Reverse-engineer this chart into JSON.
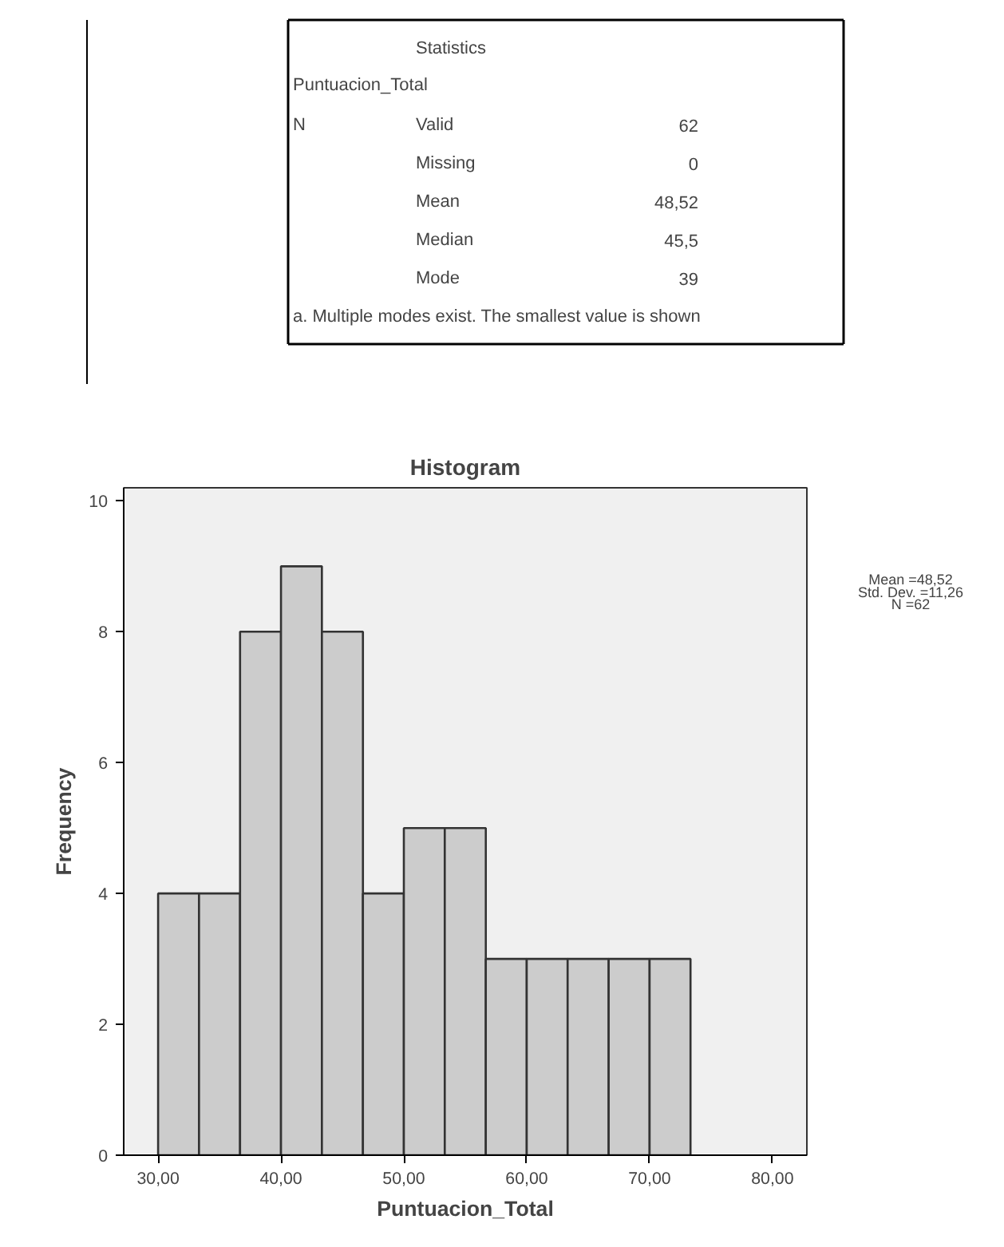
{
  "chart_data": [
    {
      "type": "other",
      "title": "Statistics",
      "subtitle": "Puntuacion_Total",
      "annotations": [
        "N",
        "Valid",
        "62",
        "Missing",
        "0",
        "Mean",
        "48,52",
        "Median",
        "45,5",
        "Mode",
        "39",
        "a. Multiple modes exist. The smallest value is shown"
      ]
    },
    {
      "type": "histogram",
      "title": "Histogram",
      "xlabel": "Puntuacion_Total",
      "ylabel": "Frequency",
      "bins": [
        30,
        33.33,
        36.67,
        40,
        43.33,
        46.67,
        50,
        53.33,
        56.67,
        60,
        63.33,
        66.67,
        70,
        73.33
      ],
      "values": [
        4,
        4,
        8,
        9,
        8,
        4,
        5,
        5,
        3,
        3,
        3,
        3,
        3
      ],
      "color": "#cccccc",
      "xlim": [
        27.2,
        82.8
      ],
      "ylim": [
        0,
        10.2
      ],
      "xticks": [
        {
          "value": 30,
          "label": "30,00"
        },
        {
          "value": 40,
          "label": "40,00"
        },
        {
          "value": 50,
          "label": "50,00"
        },
        {
          "value": 60,
          "label": "60,00"
        },
        {
          "value": 70,
          "label": "70,00"
        },
        {
          "value": 80,
          "label": "80,00"
        }
      ],
      "yticks": [
        0,
        2,
        4,
        6,
        8,
        10
      ],
      "grid": false,
      "annotations": [
        "Mean =48,52",
        "Std. Dev. =11,26",
        "N =62"
      ]
    }
  ]
}
